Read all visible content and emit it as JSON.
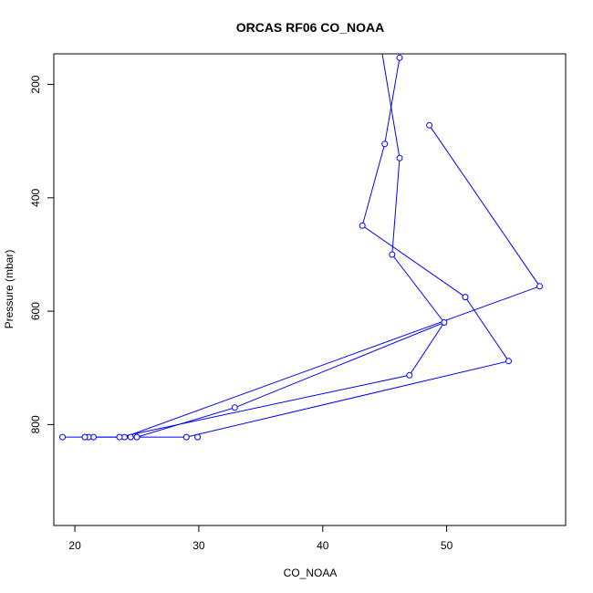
{
  "chart_data": {
    "type": "line",
    "title": "ORCAS RF06 CO_NOAA",
    "xlabel": "CO_NOAA",
    "ylabel": "Pressure (mbar)",
    "xlim": [
      18.3,
      59.6
    ],
    "ylim": [
      978,
      146
    ],
    "y_reversed": true,
    "x_ticks": [
      20,
      30,
      40,
      50
    ],
    "y_ticks": [
      200,
      400,
      600,
      800
    ],
    "grid": false,
    "legend": "none",
    "series_color": "#0000ff",
    "x": [
      44.8,
      46.2,
      45.0,
      46.2,
      43.2,
      45.6,
      49.8,
      47.0,
      55.0,
      51.5,
      45.6,
      45.6,
      49.8,
      24.0,
      57.5,
      48.6
    ],
    "y": [
      146,
      153,
      305,
      330,
      449,
      500,
      620,
      713,
      688,
      575,
      500,
      500,
      620,
      822,
      556,
      272
    ],
    "points": [
      {
        "x": 46.2,
        "y": 153
      },
      {
        "x": 45.0,
        "y": 305
      },
      {
        "x": 46.2,
        "y": 330
      },
      {
        "x": 43.2,
        "y": 449
      },
      {
        "x": 45.6,
        "y": 500
      },
      {
        "x": 49.8,
        "y": 620
      },
      {
        "x": 47.0,
        "y": 713
      },
      {
        "x": 55.0,
        "y": 688
      },
      {
        "x": 51.5,
        "y": 575
      },
      {
        "x": 57.5,
        "y": 556
      },
      {
        "x": 48.6,
        "y": 272
      },
      {
        "x": 32.9,
        "y": 770
      },
      {
        "x": 29.9,
        "y": 822
      },
      {
        "x": 29.0,
        "y": 822
      },
      {
        "x": 25.0,
        "y": 822
      },
      {
        "x": 24.5,
        "y": 822
      },
      {
        "x": 24.0,
        "y": 822
      },
      {
        "x": 23.6,
        "y": 822
      },
      {
        "x": 21.5,
        "y": 822
      },
      {
        "x": 21.1,
        "y": 822
      },
      {
        "x": 20.8,
        "y": 822
      },
      {
        "x": 19.0,
        "y": 822
      }
    ],
    "line_path": [
      {
        "x": 44.8,
        "y": 146
      },
      {
        "x": 46.2,
        "y": 330
      },
      {
        "x": 45.6,
        "y": 500
      },
      {
        "x": 49.8,
        "y": 620
      },
      {
        "x": 47.0,
        "y": 713
      },
      {
        "x": 23.6,
        "y": 822
      },
      {
        "x": 19.0,
        "y": 822
      },
      {
        "x": 21.5,
        "y": 822
      },
      {
        "x": 24.0,
        "y": 822
      },
      {
        "x": 57.5,
        "y": 556
      },
      {
        "x": 48.6,
        "y": 272
      },
      {
        "x": 48.6,
        "y": 272
      }
    ],
    "line_path_2": [
      {
        "x": 46.2,
        "y": 153
      },
      {
        "x": 45.0,
        "y": 305
      },
      {
        "x": 43.2,
        "y": 449
      },
      {
        "x": 51.5,
        "y": 575
      },
      {
        "x": 55.0,
        "y": 688
      },
      {
        "x": 29.0,
        "y": 822
      },
      {
        "x": 24.5,
        "y": 822
      },
      {
        "x": 25.0,
        "y": 822
      },
      {
        "x": 20.8,
        "y": 822
      },
      {
        "x": 21.1,
        "y": 822
      },
      {
        "x": 25.0,
        "y": 822
      },
      {
        "x": 32.9,
        "y": 770
      },
      {
        "x": 49.8,
        "y": 620
      }
    ]
  }
}
